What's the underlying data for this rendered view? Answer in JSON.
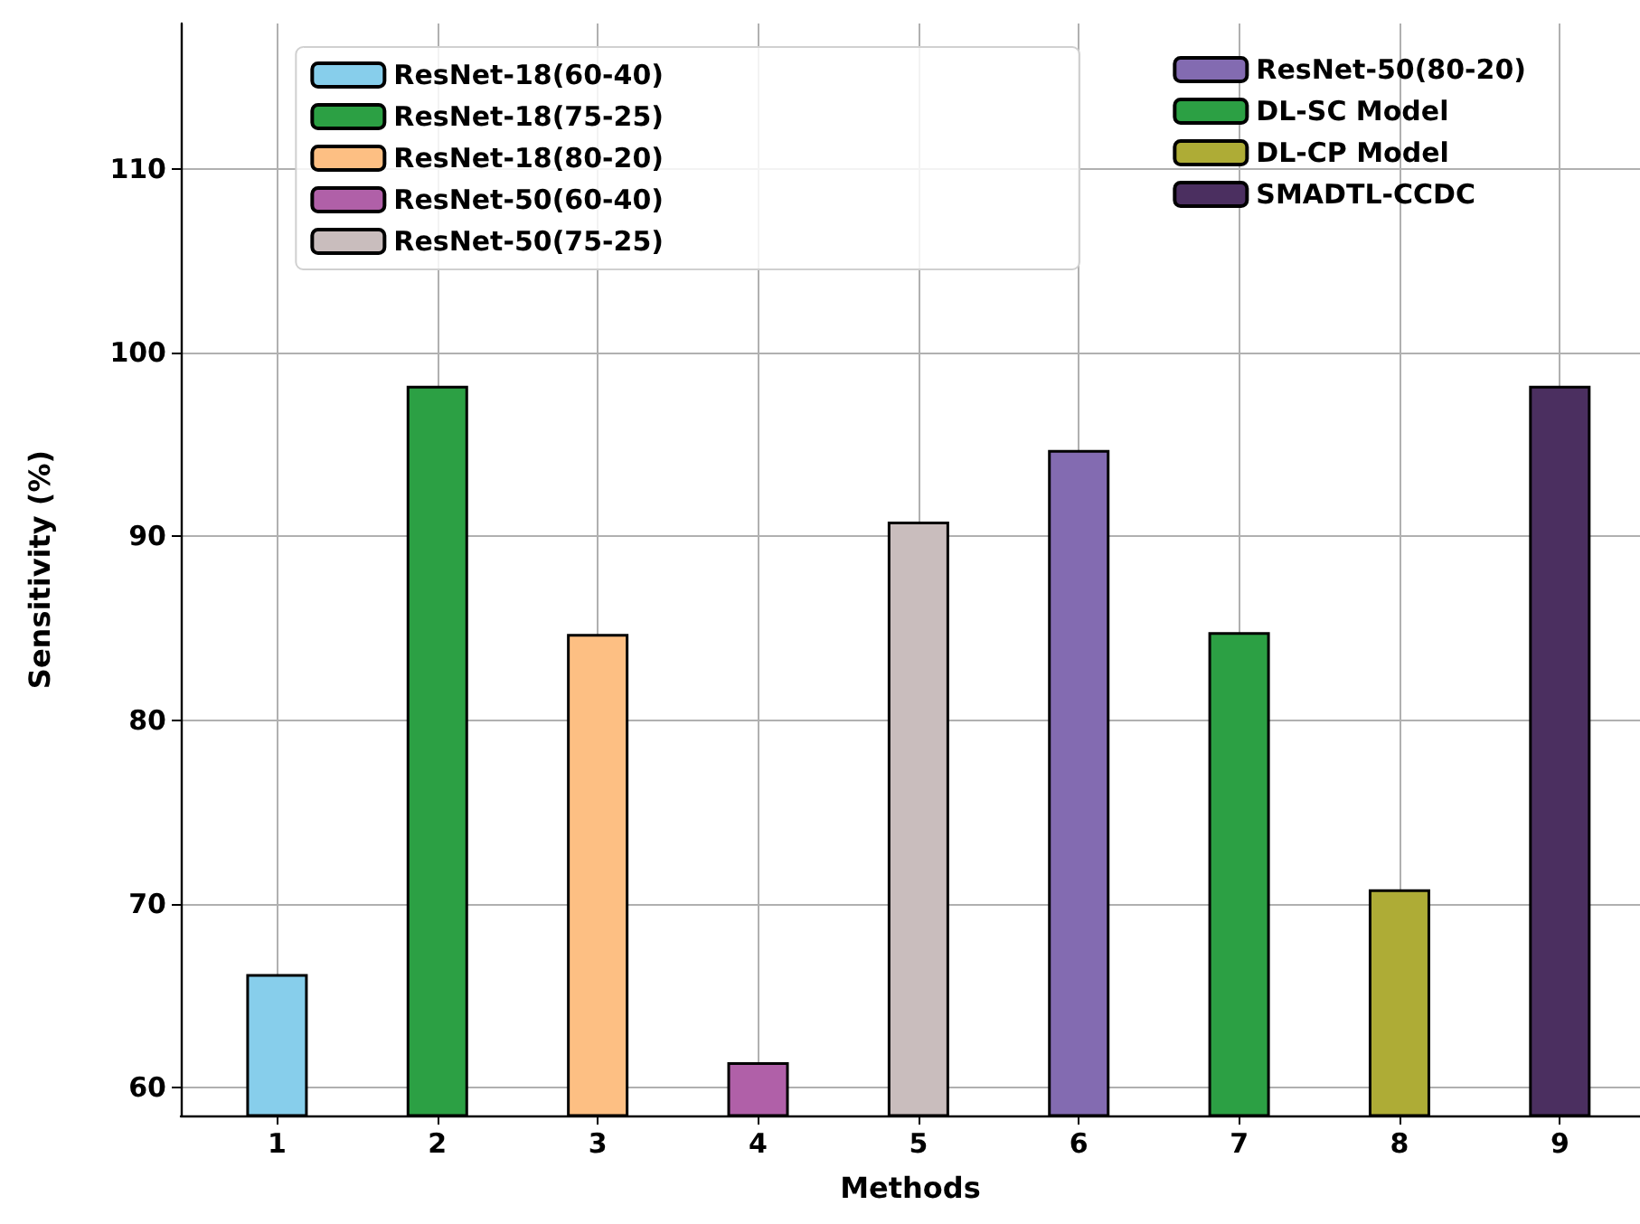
{
  "chart_data": {
    "type": "bar",
    "xlabel": "Methods",
    "ylabel": "Sensitivity (%)",
    "x": [
      1,
      2,
      3,
      4,
      5,
      6,
      7,
      8,
      9
    ],
    "series": [
      {
        "name": "ResNet-18(60-40)",
        "color": "#87ceeb",
        "values": [
          66.2,
          null,
          null,
          null,
          null,
          null,
          null,
          null,
          null
        ]
      },
      {
        "name": "ResNet-18(75-25)",
        "color": "#2ca044",
        "values": [
          null,
          98.2,
          null,
          null,
          null,
          null,
          null,
          null,
          null
        ]
      },
      {
        "name": "ResNet-18(80-20)",
        "color": "#fdbf83",
        "values": [
          null,
          null,
          84.7,
          null,
          null,
          null,
          null,
          null,
          null
        ]
      },
      {
        "name": "ResNet-50(60-40)",
        "color": "#b060a8",
        "values": [
          null,
          null,
          null,
          61.4,
          null,
          null,
          null,
          null,
          null
        ]
      },
      {
        "name": "ResNet-50(75-25)",
        "color": "#c9bdbd",
        "values": [
          null,
          null,
          null,
          null,
          90.8,
          null,
          null,
          null,
          null
        ]
      },
      {
        "name": "ResNet-50(80-20)",
        "color": "#836bb1",
        "values": [
          null,
          null,
          null,
          null,
          null,
          94.7,
          null,
          null,
          null
        ]
      },
      {
        "name": "DL-SC Model",
        "color": "#2ca044",
        "values": [
          null,
          null,
          null,
          null,
          null,
          null,
          84.8,
          null,
          null
        ]
      },
      {
        "name": "DL-CP Model",
        "color": "#aeac36",
        "values": [
          null,
          null,
          null,
          null,
          null,
          null,
          null,
          70.8,
          null
        ]
      },
      {
        "name": "SMADTL-CCDC",
        "color": "#4b2f60",
        "values": [
          null,
          null,
          null,
          null,
          null,
          null,
          null,
          null,
          98.2
        ]
      }
    ],
    "xlim": [
      0.4,
      9.5
    ],
    "xticks": [
      1,
      2,
      3,
      4,
      5,
      6,
      7,
      8,
      9
    ],
    "ylim": [
      58.5,
      117.9
    ],
    "yticks": [
      60,
      70,
      80,
      90,
      100,
      110
    ],
    "grid": true,
    "legend": "top right"
  }
}
